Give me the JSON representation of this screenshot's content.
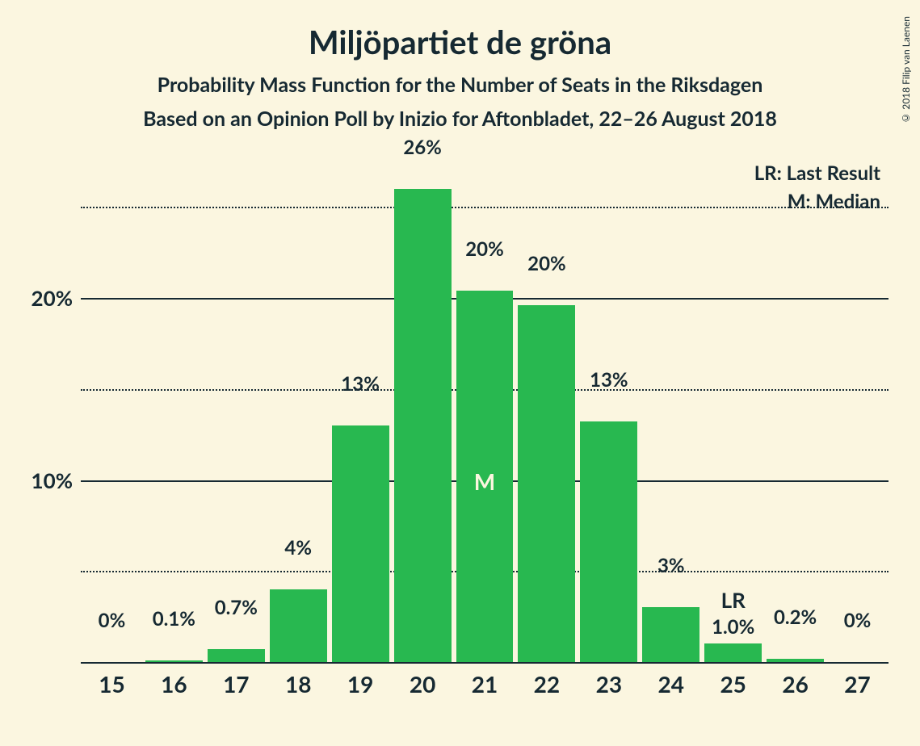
{
  "title": "Miljöpartiet de gröna",
  "subtitle1": "Probability Mass Function for the Number of Seats in the Riksdagen",
  "subtitle2": "Based on an Opinion Poll by Inizio for Aftonbladet, 22–26 August 2018",
  "copyright": "© 2018 Filip van Laenen",
  "legend": {
    "lr": "LR: Last Result",
    "m": "M: Median"
  },
  "chart": {
    "type": "bar",
    "background_color": "#fbf6e0",
    "bar_color": "#28b850",
    "text_color": "#162932",
    "grid_color": "#162932",
    "ymax": 27.5,
    "yticks": [
      {
        "value": 5,
        "label": "",
        "style": "dotted"
      },
      {
        "value": 10,
        "label": "10%",
        "style": "solid"
      },
      {
        "value": 15,
        "label": "",
        "style": "dotted"
      },
      {
        "value": 20,
        "label": "20%",
        "style": "solid"
      },
      {
        "value": 25,
        "label": "",
        "style": "dotted"
      }
    ],
    "categories": [
      "15",
      "16",
      "17",
      "18",
      "19",
      "20",
      "21",
      "22",
      "23",
      "24",
      "25",
      "26",
      "27"
    ],
    "values": [
      0,
      0.1,
      0.7,
      4,
      13,
      26,
      20.4,
      19.6,
      13.2,
      3,
      1.0,
      0.2,
      0
    ],
    "value_labels": [
      "0%",
      "0.1%",
      "0.7%",
      "4%",
      "13%",
      "26%",
      "20%",
      "20%",
      "13%",
      "3%",
      "1.0%",
      "0.2%",
      "0%"
    ],
    "median_index": 6,
    "median_label": "M",
    "lr_index": 10,
    "lr_label": "LR"
  }
}
